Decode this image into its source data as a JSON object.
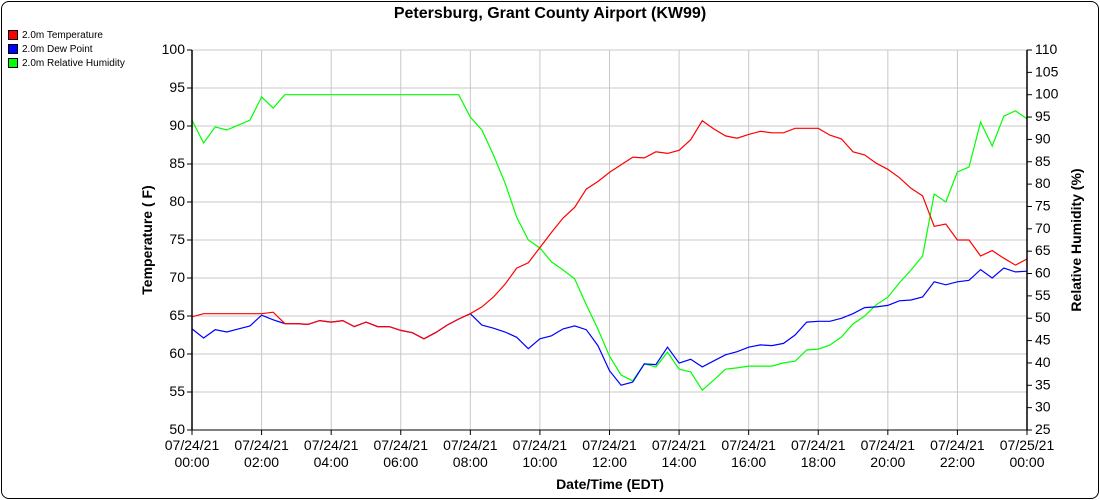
{
  "chart_data": {
    "type": "line",
    "title": "Petersburg, Grant County Airport (KW99)",
    "xlabel": "Date/Time (EDT)",
    "ylabel": "Temperature ( F)",
    "y2label": "Relative Humidity (%)",
    "ylim": [
      50,
      100
    ],
    "y2lim": [
      25,
      110
    ],
    "grid": true,
    "legend_position": "top-left",
    "x_tick_labels": [
      [
        "07/24/21",
        "00:00"
      ],
      [
        "07/24/21",
        "02:00"
      ],
      [
        "07/24/21",
        "04:00"
      ],
      [
        "07/24/21",
        "06:00"
      ],
      [
        "07/24/21",
        "08:00"
      ],
      [
        "07/24/21",
        "10:00"
      ],
      [
        "07/24/21",
        "12:00"
      ],
      [
        "07/24/21",
        "14:00"
      ],
      [
        "07/24/21",
        "16:00"
      ],
      [
        "07/24/21",
        "18:00"
      ],
      [
        "07/24/21",
        "20:00"
      ],
      [
        "07/24/21",
        "22:00"
      ],
      [
        "07/25/21",
        "00:00"
      ]
    ],
    "y_ticks": [
      50,
      55,
      60,
      65,
      70,
      75,
      80,
      85,
      90,
      95,
      100
    ],
    "y2_ticks": [
      25,
      30,
      35,
      40,
      45,
      50,
      55,
      60,
      65,
      70,
      75,
      80,
      85,
      90,
      95,
      100,
      105,
      110
    ],
    "x": [
      "00:00",
      "00:20",
      "00:40",
      "01:00",
      "01:20",
      "01:40",
      "02:00",
      "02:20",
      "02:40",
      "03:00",
      "03:20",
      "03:40",
      "04:00",
      "04:20",
      "04:40",
      "05:00",
      "05:20",
      "05:40",
      "06:00",
      "06:20",
      "06:40",
      "07:00",
      "07:20",
      "07:40",
      "08:00",
      "08:20",
      "08:40",
      "09:00",
      "09:20",
      "09:40",
      "10:00",
      "10:20",
      "10:40",
      "11:00",
      "11:20",
      "11:40",
      "12:00",
      "12:20",
      "12:40",
      "13:00",
      "13:20",
      "13:40",
      "14:00",
      "14:20",
      "14:40",
      "15:00",
      "15:20",
      "15:40",
      "16:00",
      "16:20",
      "16:40",
      "17:00",
      "17:20",
      "17:40",
      "18:00",
      "18:20",
      "18:40",
      "19:00",
      "19:20",
      "19:40",
      "20:00",
      "20:20",
      "20:40",
      "21:00",
      "21:20",
      "21:40",
      "22:00",
      "22:20",
      "22:40",
      "23:00",
      "23:20",
      "23:40",
      "24:00"
    ],
    "series": [
      {
        "name": "2.0m Temperature",
        "axis": "left",
        "color": "#ff0000",
        "values": [
          64.9,
          65.3,
          65.3,
          65.3,
          65.3,
          65.3,
          65.3,
          65.5,
          64.0,
          64.0,
          63.9,
          64.4,
          64.2,
          64.4,
          63.6,
          64.2,
          63.6,
          63.6,
          63.1,
          62.8,
          62.0,
          62.8,
          63.8,
          64.6,
          65.3,
          66.2,
          67.5,
          69.2,
          71.3,
          72.0,
          74.0,
          76.0,
          77.9,
          79.3,
          81.7,
          82.7,
          83.9,
          84.9,
          85.9,
          85.8,
          86.6,
          86.4,
          86.8,
          88.2,
          90.7,
          89.6,
          88.7,
          88.4,
          88.9,
          89.3,
          89.1,
          89.1,
          89.7,
          89.7,
          89.7,
          88.8,
          88.3,
          86.6,
          86.2,
          85.1,
          84.3,
          83.2,
          81.8,
          80.8,
          76.8,
          77.1,
          75.0,
          75.0,
          72.9,
          73.6,
          72.6,
          71.7,
          72.5
        ]
      },
      {
        "name": "2.0m Dew Point",
        "axis": "left",
        "color": "#0000ff",
        "values": [
          63.3,
          62.1,
          63.2,
          62.9,
          63.3,
          63.7,
          65.1,
          64.5,
          64.0,
          64.0,
          63.9,
          64.4,
          64.2,
          64.4,
          63.6,
          64.2,
          63.6,
          63.6,
          63.1,
          62.8,
          62.0,
          62.8,
          63.8,
          64.6,
          65.3,
          63.8,
          63.4,
          62.9,
          62.2,
          60.7,
          62.0,
          62.4,
          63.3,
          63.7,
          63.2,
          61.1,
          57.8,
          55.9,
          56.3,
          58.7,
          58.6,
          60.9,
          58.8,
          59.3,
          58.3,
          59.1,
          59.9,
          60.3,
          60.9,
          61.2,
          61.1,
          61.4,
          62.5,
          64.2,
          64.3,
          64.3,
          64.7,
          65.3,
          66.1,
          66.2,
          66.4,
          67.0,
          67.1,
          67.5,
          69.5,
          69.1,
          69.5,
          69.7,
          71.1,
          70.0,
          71.3,
          70.8,
          70.9
        ]
      },
      {
        "name": "2.0m Relative Humidity",
        "axis": "right",
        "color": "#00ff00",
        "values": [
          94.3,
          89.2,
          92.8,
          92.1,
          93.2,
          94.3,
          99.5,
          97.0,
          100,
          100,
          100,
          100,
          100,
          100,
          100,
          100,
          100,
          100,
          100,
          100,
          100,
          100,
          100,
          100,
          95.0,
          92.1,
          86.5,
          80.2,
          72.6,
          67.5,
          65.7,
          62.6,
          60.8,
          58.8,
          53.0,
          47.6,
          41.5,
          37.3,
          36.0,
          39.8,
          39.1,
          42.4,
          38.6,
          38.0,
          33.9,
          36.2,
          38.6,
          38.9,
          39.3,
          39.3,
          39.3,
          40.0,
          40.4,
          42.9,
          43.1,
          44.0,
          45.8,
          48.7,
          50.5,
          53.0,
          54.7,
          57.9,
          60.8,
          63.9,
          77.8,
          76.0,
          82.7,
          83.8,
          93.9,
          88.5,
          95.2,
          96.4,
          94.6
        ]
      }
    ]
  }
}
